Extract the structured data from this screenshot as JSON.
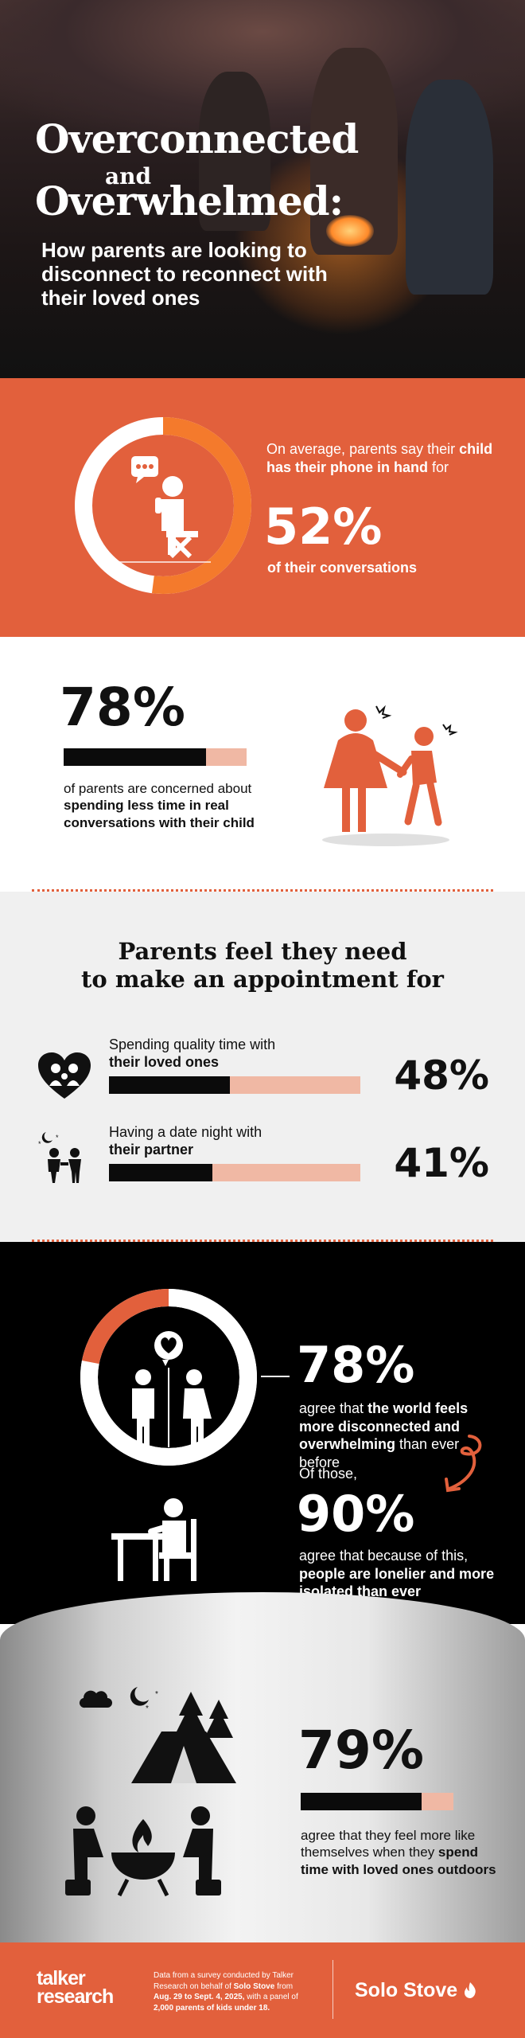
{
  "hero": {
    "title_line1": "Overconnected",
    "title_and": "and",
    "title_line2": "Overwhelmed:",
    "subtitle": "How parents are looking to disconnect to reconnect with their loved ones"
  },
  "phone_stat": {
    "text_before": "On average, parents say their",
    "text_bold": "child has their phone in hand",
    "text_after": " for",
    "percent": "52%",
    "percent_value": 52,
    "caption": "of their conversations",
    "icon": "person-on-phone-icon"
  },
  "concern_stat": {
    "percent": "78%",
    "percent_value": 78,
    "text_before": "of parents are concerned about ",
    "text_bold": "spending less time in real conversations with their child",
    "icon": "parent-child-tugging-icon"
  },
  "appointment": {
    "title_line1": "Parents feel they need",
    "title_line2": "to make an appointment for",
    "rows": [
      {
        "label": "Spending quality time with",
        "label_bold": "their loved ones",
        "percent": "48%",
        "value": 48,
        "icon": "family-heart-icon"
      },
      {
        "label": "Having a date night with",
        "label_bold": "their partner",
        "percent": "41%",
        "value": 41,
        "icon": "couple-night-icon"
      }
    ]
  },
  "disconnected": {
    "percent": "78%",
    "percent_value": 78,
    "text_before": "agree that ",
    "text_bold": "the world feels more disconnected and overwhelming",
    "text_after": " than ever before",
    "of_those": "Of those,",
    "percent2": "90%",
    "percent2_value": 90,
    "text2_before": "agree that because of this, ",
    "text2_bold": "people are lonelier and more isolated than ever",
    "icons": [
      "couple-broken-heart-icon",
      "person-alone-at-table-icon",
      "curved-arrow-icon"
    ]
  },
  "outdoors": {
    "percent": "79%",
    "percent_value": 79,
    "text_before": "agree that they feel more like themselves when they ",
    "text_bold": "spend time with loved ones outdoors",
    "icons": [
      "campsite-tent-icon",
      "fire-pit-gathering-icon"
    ]
  },
  "footer": {
    "brand_left_line1": "talker",
    "brand_left_line2": "research",
    "note_1": "Data from a survey conducted by Talker Research on behalf of ",
    "note_b1": "Solo Stove",
    "note_2": " from ",
    "note_b2": "Aug. 29 to Sept. 4, 2025,",
    "note_3": " with a panel of ",
    "note_b3": "2,000 parents of kids under 18.",
    "brand_right": "Solo Stove"
  },
  "colors": {
    "accent": "#e2603c",
    "bar_track": "#f0b8a4",
    "dark": "#000000"
  }
}
